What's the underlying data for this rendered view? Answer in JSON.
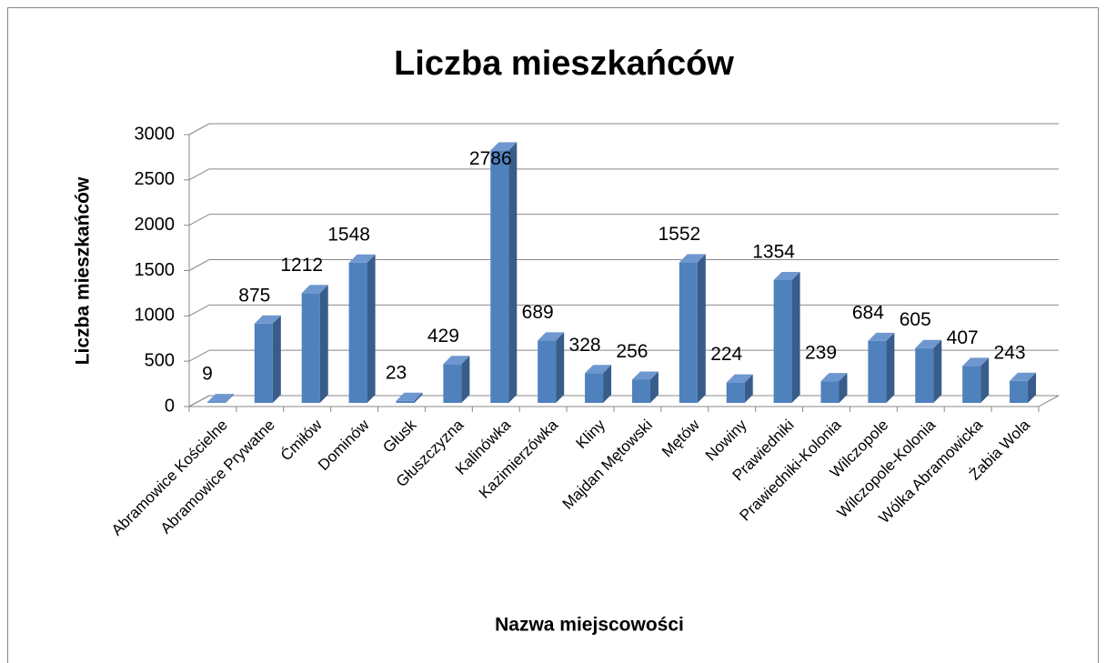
{
  "chart_data": {
    "type": "bar",
    "title": "Liczba mieszkańców",
    "x_label": "Nazwa miejscowości",
    "y_label": "Liczba mieszkańców",
    "categories": [
      "Abramowice Kościelne",
      "Abramowice Prywatne",
      "Ćmiłów",
      "Dominów",
      "Głusk",
      "Głuszczyzna",
      "Kalinówka",
      "Kazimierzówka",
      "Kliny",
      "Majdan Mętowski",
      "Mętów",
      "Nowiny",
      "Prawiedniki",
      "Prawiedniki-Kolonia",
      "Wilczopole",
      "Wilczopole-Kolonia",
      "Wólka Abramowicka",
      "Żabia Wola"
    ],
    "values": [
      9,
      875,
      1212,
      1548,
      23,
      429,
      2786,
      689,
      328,
      256,
      1552,
      224,
      1354,
      239,
      684,
      605,
      407,
      243
    ],
    "color": "#4f81bd",
    "ylim": [
      0,
      3000
    ],
    "yticks": [
      0,
      500,
      1000,
      1500,
      2000,
      2500,
      3000
    ],
    "grid": true
  }
}
